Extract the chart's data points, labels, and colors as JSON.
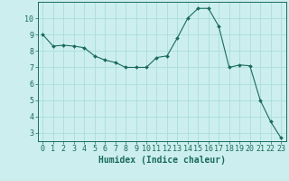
{
  "x": [
    0,
    1,
    2,
    3,
    4,
    5,
    6,
    7,
    8,
    9,
    10,
    11,
    12,
    13,
    14,
    15,
    16,
    17,
    18,
    19,
    20,
    21,
    22,
    23
  ],
  "y": [
    9.0,
    8.3,
    8.35,
    8.3,
    8.2,
    7.7,
    7.45,
    7.3,
    7.0,
    7.0,
    7.0,
    7.6,
    7.7,
    8.8,
    10.0,
    10.6,
    10.6,
    9.5,
    7.0,
    7.15,
    7.1,
    5.0,
    3.7,
    2.7
  ],
  "line_color": "#1a6b5a",
  "marker_color": "#1a6b5a",
  "bg_color": "#cceeee",
  "grid_color": "#aadddd",
  "xlabel": "Humidex (Indice chaleur)",
  "xlim": [
    -0.5,
    23.5
  ],
  "ylim": [
    2.5,
    11.0
  ],
  "yticks": [
    3,
    4,
    5,
    6,
    7,
    8,
    9,
    10
  ],
  "xticks": [
    0,
    1,
    2,
    3,
    4,
    5,
    6,
    7,
    8,
    9,
    10,
    11,
    12,
    13,
    14,
    15,
    16,
    17,
    18,
    19,
    20,
    21,
    22,
    23
  ],
  "tick_fontsize": 6.0,
  "label_fontsize": 7.0
}
